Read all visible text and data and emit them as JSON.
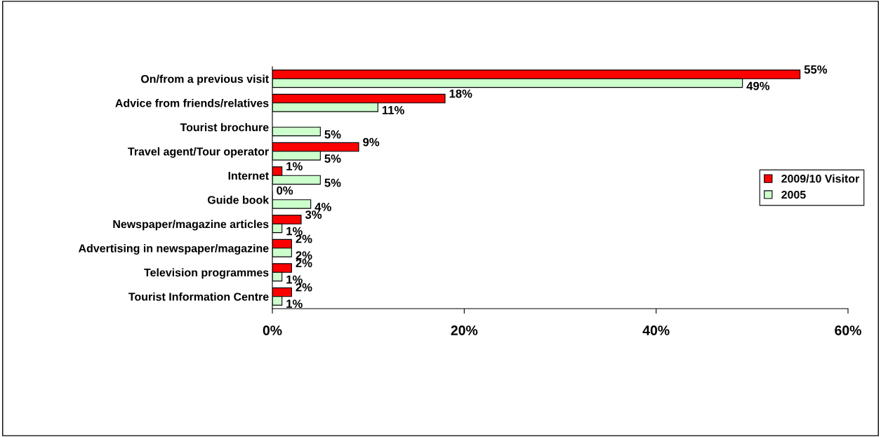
{
  "chart_data": {
    "type": "bar",
    "orientation": "horizontal",
    "categories": [
      "On/from a previous visit",
      "Advice from friends/relatives",
      "Tourist brochure",
      "Travel agent/Tour operator",
      "Internet",
      "Guide book",
      "Newspaper/magazine articles",
      "Advertising in newspaper/magazine",
      "Television programmes",
      "Tourist Information Centre"
    ],
    "series": [
      {
        "name": "2009/10 Visitor",
        "color": "#ff0000",
        "values": [
          55,
          18,
          null,
          9,
          1,
          0,
          3,
          2,
          2,
          2
        ],
        "value_labels": [
          "55%",
          "18%",
          null,
          "9%",
          "1%",
          "0%",
          "3%",
          "2%",
          "2%",
          "2%"
        ]
      },
      {
        "name": "2005",
        "color": "#ccffcc",
        "values": [
          49,
          11,
          5,
          5,
          5,
          4,
          1,
          2,
          1,
          1
        ],
        "value_labels": [
          "49%",
          "11%",
          "5%",
          "5%",
          "5%",
          "4%",
          "1%",
          "2%",
          "1%",
          "1%"
        ]
      }
    ],
    "xlim": [
      0,
      60
    ],
    "xticks": [
      {
        "value": 0,
        "label": "0%"
      },
      {
        "value": 20,
        "label": "20%"
      },
      {
        "value": 40,
        "label": "40%"
      },
      {
        "value": 60,
        "label": "60%"
      }
    ],
    "legend": "right",
    "grid": false
  }
}
